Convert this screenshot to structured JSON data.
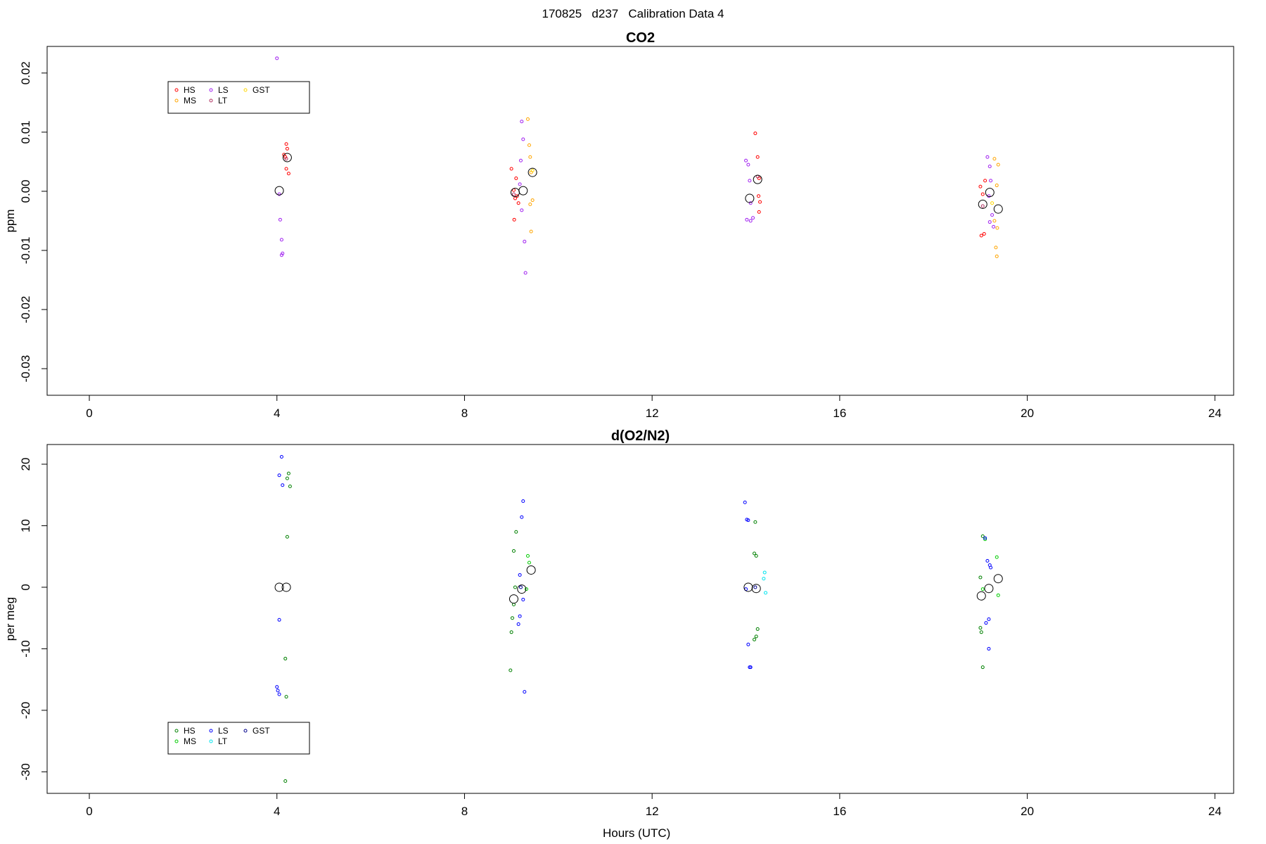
{
  "suptitle": "170825   d237   Calibration Data 4",
  "chart_data": [
    {
      "type": "scatter",
      "title": "CO2",
      "ylabel": "ppm",
      "xlabel": "",
      "xlim": [
        -0.9,
        24.4
      ],
      "ylim": [
        -0.0345,
        0.0245
      ],
      "xticks": [
        0,
        4,
        8,
        12,
        16,
        20,
        24
      ],
      "yticks": [
        -0.03,
        -0.02,
        -0.01,
        0.0,
        0.01,
        0.02
      ],
      "ytick_labels": [
        "-0.03",
        "-0.02",
        "-0.01",
        "0.00",
        "0.01",
        "0.02"
      ],
      "legend_position": "top-left",
      "series": [
        {
          "name": "HS",
          "color": "#ff0000",
          "points": [
            [
              4.2,
              0.008
            ],
            [
              4.22,
              0.0072
            ],
            [
              4.15,
              0.0062
            ],
            [
              4.18,
              0.0058
            ],
            [
              4.2,
              0.0038
            ],
            [
              4.25,
              0.003
            ],
            [
              9.0,
              0.0038
            ],
            [
              9.1,
              0.0022
            ],
            [
              9.05,
              0.0002
            ],
            [
              9.12,
              -0.0008
            ],
            [
              9.08,
              -0.0012
            ],
            [
              9.15,
              -0.002
            ],
            [
              9.06,
              -0.0048
            ],
            [
              14.2,
              0.0098
            ],
            [
              14.25,
              0.0058
            ],
            [
              14.28,
              0.0022
            ],
            [
              14.27,
              -0.0008
            ],
            [
              14.3,
              -0.0018
            ],
            [
              14.28,
              -0.0035
            ],
            [
              19.0,
              0.0008
            ],
            [
              19.05,
              -0.0005
            ],
            [
              19.1,
              0.0018
            ],
            [
              19.08,
              -0.0072
            ],
            [
              19.02,
              -0.0075
            ]
          ]
        },
        {
          "name": "MS",
          "color": "#ffa500",
          "points": [
            [
              9.35,
              0.0122
            ],
            [
              9.38,
              0.0078
            ],
            [
              9.4,
              0.0058
            ],
            [
              9.42,
              0.0032
            ],
            [
              9.45,
              -0.0015
            ],
            [
              9.4,
              -0.0022
            ],
            [
              9.42,
              -0.0068
            ],
            [
              19.3,
              0.0055
            ],
            [
              19.38,
              0.0045
            ],
            [
              19.35,
              0.001
            ],
            [
              19.3,
              -0.005
            ],
            [
              19.36,
              -0.0062
            ],
            [
              19.33,
              -0.0095
            ],
            [
              19.35,
              -0.011
            ]
          ]
        },
        {
          "name": "LS",
          "color": "#a020f0",
          "points": [
            [
              4.0,
              0.0225
            ],
            [
              4.05,
              -0.0005
            ],
            [
              4.07,
              -0.0048
            ],
            [
              4.1,
              -0.0082
            ],
            [
              4.12,
              -0.0105
            ],
            [
              4.1,
              -0.0108
            ],
            [
              9.22,
              0.0118
            ],
            [
              9.25,
              0.0088
            ],
            [
              9.2,
              0.0052
            ],
            [
              9.18,
              0.0012
            ],
            [
              9.22,
              -0.0032
            ],
            [
              9.28,
              -0.0085
            ],
            [
              9.3,
              -0.0138
            ],
            [
              14.0,
              0.0052
            ],
            [
              14.05,
              0.0045
            ],
            [
              14.08,
              0.0018
            ],
            [
              14.1,
              -0.002
            ],
            [
              14.02,
              -0.0048
            ],
            [
              14.1,
              -0.005
            ],
            [
              14.15,
              -0.0045
            ],
            [
              19.15,
              0.0058
            ],
            [
              19.2,
              0.0042
            ],
            [
              19.22,
              0.0018
            ],
            [
              19.18,
              -0.0008
            ],
            [
              19.25,
              -0.004
            ],
            [
              19.2,
              -0.0052
            ],
            [
              19.28,
              -0.006
            ]
          ]
        },
        {
          "name": "LT",
          "color": "#b03060",
          "points": [
            [
              4.2,
              0.0055
            ],
            [
              9.05,
              -0.0005
            ],
            [
              14.25,
              0.0025
            ],
            [
              19.05,
              -0.0025
            ]
          ]
        },
        {
          "name": "GST",
          "color": "#ffd700",
          "points": [
            [
              9.45,
              0.0035
            ],
            [
              19.25,
              -0.002
            ]
          ]
        }
      ],
      "mean_markers": [
        [
          4.05,
          0.0001
        ],
        [
          4.22,
          0.0057
        ],
        [
          9.08,
          -0.0002
        ],
        [
          9.25,
          0.0001
        ],
        [
          9.45,
          0.0032
        ],
        [
          14.08,
          -0.0012
        ],
        [
          14.25,
          0.002
        ],
        [
          19.05,
          -0.0022
        ],
        [
          19.2,
          -0.0002
        ],
        [
          19.38,
          -0.003
        ]
      ],
      "legend_layout": {
        "columns": 3,
        "rows": 2
      }
    },
    {
      "type": "scatter",
      "title": "d(O2/N2)",
      "ylabel": "per meg",
      "xlabel": "Hours (UTC)",
      "xlim": [
        -0.9,
        24.4
      ],
      "ylim": [
        -33.5,
        23.2
      ],
      "xticks": [
        0,
        4,
        8,
        12,
        16,
        20,
        24
      ],
      "yticks": [
        -30,
        -20,
        -10,
        0,
        10,
        20
      ],
      "ytick_labels": [
        "-30",
        "-20",
        "-10",
        "0",
        "10",
        "20"
      ],
      "legend_position": "bottom-left",
      "series": [
        {
          "name": "HS",
          "color": "#008000",
          "points": [
            [
              4.25,
              18.5
            ],
            [
              4.22,
              17.7
            ],
            [
              4.28,
              16.4
            ],
            [
              4.22,
              8.2
            ],
            [
              4.18,
              -11.6
            ],
            [
              4.2,
              -17.8
            ],
            [
              4.18,
              -31.5
            ],
            [
              9.05,
              5.9
            ],
            [
              9.1,
              9.0
            ],
            [
              9.08,
              0.0
            ],
            [
              9.05,
              -2.8
            ],
            [
              9.02,
              -5.0
            ],
            [
              9.0,
              -7.3
            ],
            [
              8.98,
              -13.5
            ],
            [
              14.2,
              10.6
            ],
            [
              14.18,
              5.5
            ],
            [
              14.22,
              5.1
            ],
            [
              14.25,
              -6.8
            ],
            [
              14.22,
              -8.0
            ],
            [
              14.18,
              -8.5
            ],
            [
              19.0,
              1.6
            ],
            [
              19.05,
              8.3
            ],
            [
              19.0,
              -6.6
            ],
            [
              19.02,
              -7.3
            ],
            [
              19.05,
              -13.0
            ]
          ]
        },
        {
          "name": "MS",
          "color": "#00cc00",
          "points": [
            [
              9.35,
              5.1
            ],
            [
              9.38,
              4.0
            ],
            [
              9.32,
              -0.3
            ],
            [
              19.05,
              -0.3
            ],
            [
              19.1,
              7.8
            ],
            [
              19.35,
              4.9
            ],
            [
              19.38,
              -1.3
            ]
          ]
        },
        {
          "name": "LS",
          "color": "#0000ff",
          "points": [
            [
              4.1,
              21.2
            ],
            [
              4.05,
              18.2
            ],
            [
              4.12,
              16.6
            ],
            [
              4.05,
              -5.3
            ],
            [
              4.0,
              -16.2
            ],
            [
              4.02,
              -16.8
            ],
            [
              4.05,
              -17.4
            ],
            [
              9.25,
              14.0
            ],
            [
              9.22,
              11.4
            ],
            [
              9.18,
              2.0
            ],
            [
              9.25,
              -2.0
            ],
            [
              9.18,
              -4.7
            ],
            [
              9.15,
              -6.0
            ],
            [
              9.28,
              -17.0
            ],
            [
              13.98,
              13.8
            ],
            [
              14.02,
              11.0
            ],
            [
              14.05,
              10.9
            ],
            [
              14.0,
              -0.3
            ],
            [
              14.05,
              -9.3
            ],
            [
              14.08,
              -13.0
            ],
            [
              14.1,
              -13.0
            ],
            [
              19.1,
              8.0
            ],
            [
              19.15,
              4.3
            ],
            [
              19.2,
              3.6
            ],
            [
              19.22,
              3.2
            ],
            [
              19.18,
              -5.2
            ],
            [
              19.12,
              -5.8
            ],
            [
              19.18,
              -10.0
            ]
          ]
        },
        {
          "name": "LT",
          "color": "#00e5ee",
          "points": [
            [
              14.4,
              2.4
            ],
            [
              14.38,
              1.4
            ],
            [
              14.42,
              -0.9
            ]
          ]
        },
        {
          "name": "GST",
          "color": "#00008b",
          "points": [
            [
              9.2,
              0.0
            ],
            [
              14.2,
              0.0
            ]
          ]
        }
      ],
      "mean_markers": [
        [
          4.05,
          0.0
        ],
        [
          4.2,
          0.0
        ],
        [
          9.05,
          -1.9
        ],
        [
          9.22,
          -0.3
        ],
        [
          9.42,
          2.8
        ],
        [
          14.05,
          0.0
        ],
        [
          14.22,
          -0.2
        ],
        [
          19.02,
          -1.4
        ],
        [
          19.18,
          -0.2
        ],
        [
          19.38,
          1.4
        ]
      ],
      "legend_layout": {
        "columns": 3,
        "rows": 2
      }
    }
  ]
}
